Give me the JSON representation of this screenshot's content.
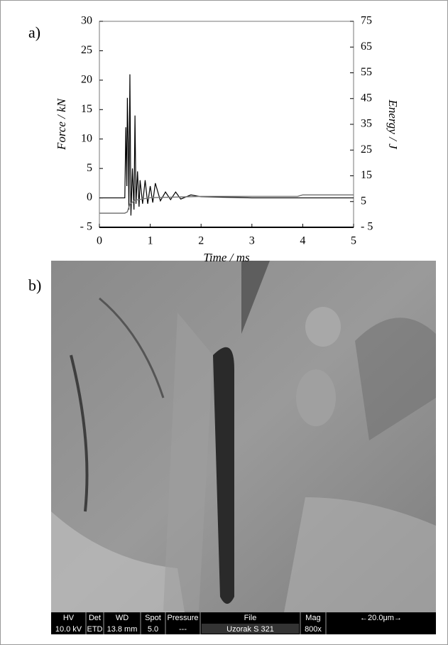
{
  "chart_data": {
    "type": "line",
    "panel_label": "a)",
    "xlabel": "Time / ms",
    "ylabel": "Force / kN",
    "y2label": "Energy / J",
    "xlim": [
      0,
      5
    ],
    "xticks": [
      0,
      1,
      2,
      3,
      4,
      5
    ],
    "ylim": [
      -5,
      30
    ],
    "yticks": [
      {
        "value": -5,
        "label": "- 5"
      },
      0,
      5,
      10,
      15,
      20,
      25,
      30
    ],
    "y2lim": [
      -5,
      75
    ],
    "y2ticks": [
      {
        "value": -5,
        "label": "- 5"
      },
      5,
      15,
      25,
      35,
      45,
      55,
      65,
      75
    ],
    "series": [
      {
        "color": "#000000",
        "x": [
          0,
          0.5,
          0.52,
          0.54,
          0.55,
          0.57,
          0.58,
          0.6,
          0.62,
          0.65,
          0.68,
          0.7,
          0.72,
          0.75,
          0.78,
          0.8,
          0.85,
          0.9,
          0.95,
          1.0,
          1.05,
          1.1,
          1.2,
          1.3,
          1.4,
          1.5,
          1.6,
          1.8,
          2.0,
          2.5,
          3.0,
          4.0,
          5.0
        ],
        "values": [
          0,
          0,
          12,
          2,
          17,
          8,
          -2,
          21,
          -3,
          5,
          -2,
          14,
          -1,
          4.5,
          -1.5,
          3,
          -1,
          3,
          -1,
          2,
          -0.8,
          2.5,
          -0.5,
          1,
          -0.3,
          1,
          -0.2,
          0.5,
          0.2,
          0.1,
          0,
          0,
          0
        ]
      },
      {
        "color": "#777777",
        "axis": "y2",
        "x": [
          0,
          0.5,
          0.55,
          0.6,
          0.7,
          1.0,
          2.0,
          3.9,
          4.0,
          5.0
        ],
        "values": [
          0.5,
          0.5,
          1,
          4,
          5.5,
          6.5,
          7,
          7,
          7.6,
          7.6
        ]
      }
    ]
  },
  "image_panel": {
    "label": "b)",
    "info_headers": [
      "HV",
      "Det",
      "WD",
      "Spot",
      "Pressure",
      "File",
      "Mag",
      "←20.0μm→"
    ],
    "info_values": [
      "10.0 kV",
      "ETD",
      "13.8 mm",
      "5.0",
      "---",
      "Uzorak S 321",
      "800x"
    ]
  }
}
